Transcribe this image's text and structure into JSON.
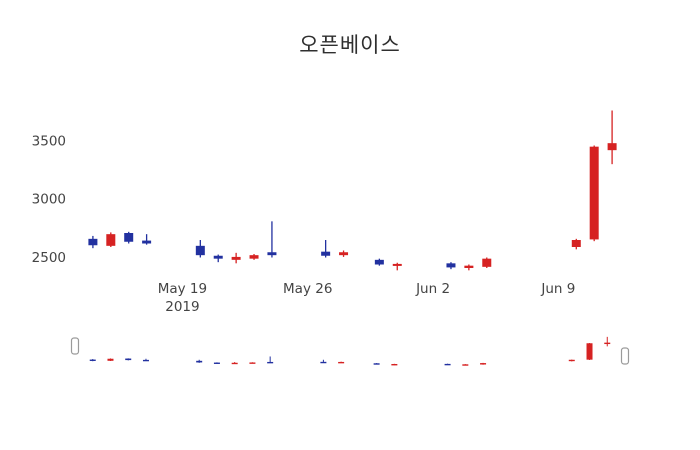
{
  "chart_data": {
    "type": "candlestick",
    "title": "오픈베이스",
    "up_color": "#d62222",
    "down_color": "#2231a0",
    "text_color": "#444444",
    "title_color": "#2f2f2f",
    "background": "#ffffff",
    "grid": false,
    "legend": false,
    "rangeslider": true,
    "ylim": [
      2350,
      3850
    ],
    "yticks": [
      2500,
      3000,
      3500
    ],
    "x_domain_days": [
      0,
      31
    ],
    "xticks": [
      {
        "d": 6,
        "label": "May 19",
        "sub": "2019"
      },
      {
        "d": 13,
        "label": "May 26",
        "sub": ""
      },
      {
        "d": 20,
        "label": "Jun 2",
        "sub": ""
      },
      {
        "d": 27,
        "label": "Jun 9",
        "sub": ""
      }
    ],
    "candles": [
      {
        "d": 1,
        "date": "2019-05-14",
        "open": 2660,
        "high": 2685,
        "low": 2580,
        "close": 2605
      },
      {
        "d": 2,
        "date": "2019-05-15",
        "open": 2600,
        "high": 2715,
        "low": 2590,
        "close": 2700
      },
      {
        "d": 3,
        "date": "2019-05-16",
        "open": 2710,
        "high": 2720,
        "low": 2620,
        "close": 2635
      },
      {
        "d": 4,
        "date": "2019-05-17",
        "open": 2645,
        "high": 2700,
        "low": 2610,
        "close": 2620
      },
      {
        "d": 7,
        "date": "2019-05-20",
        "open": 2600,
        "high": 2650,
        "low": 2500,
        "close": 2520
      },
      {
        "d": 8,
        "date": "2019-05-21",
        "open": 2515,
        "high": 2525,
        "low": 2460,
        "close": 2490
      },
      {
        "d": 9,
        "date": "2019-05-22",
        "open": 2480,
        "high": 2540,
        "low": 2450,
        "close": 2505
      },
      {
        "d": 10,
        "date": "2019-05-23",
        "open": 2490,
        "high": 2530,
        "low": 2480,
        "close": 2520
      },
      {
        "d": 11,
        "date": "2019-05-24",
        "open": 2545,
        "high": 2810,
        "low": 2500,
        "close": 2520
      },
      {
        "d": 14,
        "date": "2019-05-27",
        "open": 2550,
        "high": 2650,
        "low": 2500,
        "close": 2515
      },
      {
        "d": 15,
        "date": "2019-05-28",
        "open": 2520,
        "high": 2560,
        "low": 2505,
        "close": 2545
      },
      {
        "d": 17,
        "date": "2019-05-30",
        "open": 2480,
        "high": 2490,
        "low": 2430,
        "close": 2440
      },
      {
        "d": 18,
        "date": "2019-05-31",
        "open": 2430,
        "high": 2455,
        "low": 2390,
        "close": 2445
      },
      {
        "d": 21,
        "date": "2019-06-03",
        "open": 2450,
        "high": 2460,
        "low": 2400,
        "close": 2415
      },
      {
        "d": 22,
        "date": "2019-06-04",
        "open": 2410,
        "high": 2440,
        "low": 2390,
        "close": 2430
      },
      {
        "d": 23,
        "date": "2019-06-05",
        "open": 2420,
        "high": 2500,
        "low": 2410,
        "close": 2490
      },
      {
        "d": 28,
        "date": "2019-06-10",
        "open": 2590,
        "high": 2660,
        "low": 2570,
        "close": 2650
      },
      {
        "d": 29,
        "date": "2019-06-11",
        "open": 2655,
        "high": 3460,
        "low": 2640,
        "close": 3450
      },
      {
        "d": 30,
        "date": "2019-06-12",
        "open": 3420,
        "high": 3760,
        "low": 3300,
        "close": 3480
      }
    ]
  }
}
